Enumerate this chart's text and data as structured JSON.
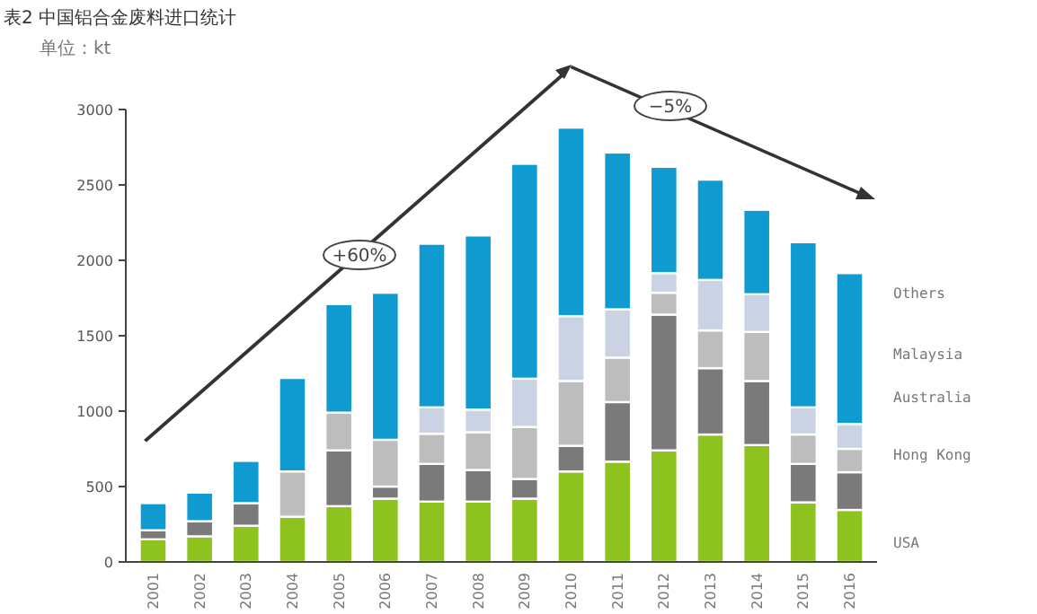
{
  "chart_data": {
    "type": "bar",
    "title": "表2 中国铝合金废料进口统计",
    "subtitle": "单位：kt",
    "stacked": true,
    "legend": "right",
    "grid": false,
    "categories": [
      "2001",
      "2002",
      "2003",
      "2004",
      "2005",
      "2006",
      "2007",
      "2008",
      "2009",
      "2010",
      "2011",
      "2012",
      "2013",
      "2014",
      "2015",
      "2016"
    ],
    "ylim": [
      0,
      3000
    ],
    "yticks": [
      0,
      500,
      1000,
      1500,
      2000,
      2500,
      3000
    ],
    "series": [
      {
        "name": "USA",
        "color": "#8dc21f",
        "values": [
          150,
          170,
          240,
          300,
          370,
          420,
          400,
          400,
          420,
          600,
          665,
          740,
          845,
          775,
          395,
          345
        ]
      },
      {
        "name": "Hong Kong",
        "color": "#7a7a7a",
        "values": [
          60,
          100,
          150,
          0,
          370,
          80,
          250,
          210,
          130,
          170,
          395,
          900,
          440,
          425,
          255,
          250
        ]
      },
      {
        "name": "Australia",
        "color": "#bdbdbd",
        "values": [
          0,
          0,
          0,
          300,
          250,
          310,
          200,
          250,
          345,
          430,
          295,
          145,
          250,
          325,
          195,
          155
        ]
      },
      {
        "name": "Malaysia",
        "color": "#c9d3e3",
        "values": [
          0,
          0,
          0,
          0,
          0,
          0,
          175,
          150,
          320,
          430,
          320,
          130,
          335,
          250,
          180,
          165
        ]
      },
      {
        "name": "Others",
        "color": "#0f9bd0",
        "values": [
          180,
          190,
          280,
          620,
          720,
          975,
          1085,
          1155,
          1425,
          1250,
          1040,
          705,
          665,
          560,
          1095,
          1000
        ]
      }
    ],
    "annotations": [
      "+60%",
      "−5%"
    ]
  }
}
